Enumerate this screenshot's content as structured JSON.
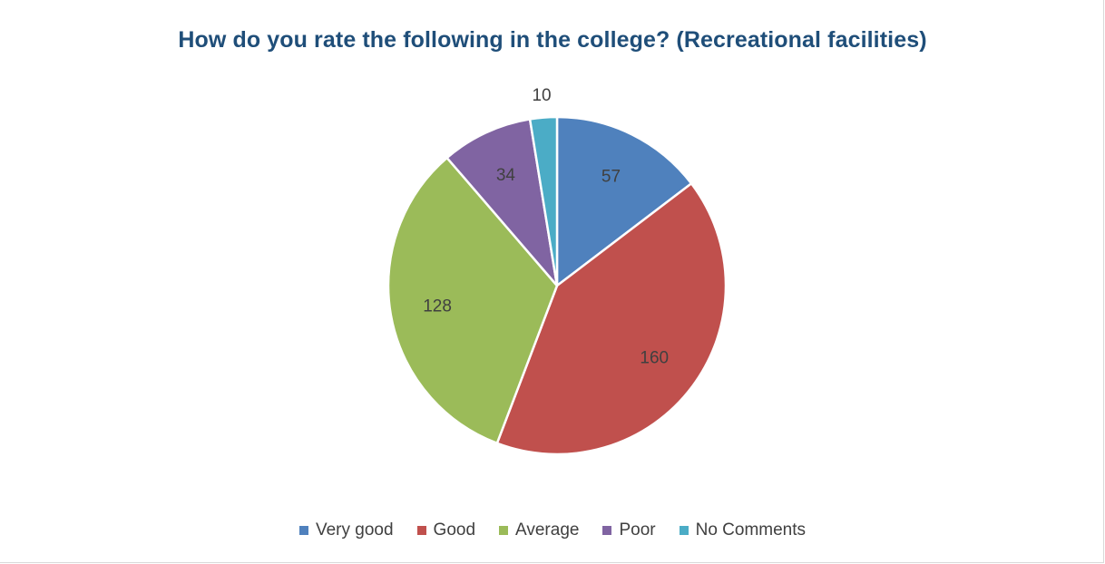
{
  "chart_data": {
    "type": "pie",
    "title": "How do you rate the following in the college? (Recreational facilities)",
    "categories": [
      "Very good",
      "Good",
      "Average",
      "Poor",
      "No Comments"
    ],
    "values": [
      57,
      160,
      128,
      34,
      10
    ],
    "colors": [
      "#4f81bd",
      "#c0504d",
      "#9bbb59",
      "#8064a2",
      "#4bacc6"
    ],
    "start_angle_deg": 0,
    "direction": "clockwise",
    "legend_position": "bottom"
  }
}
